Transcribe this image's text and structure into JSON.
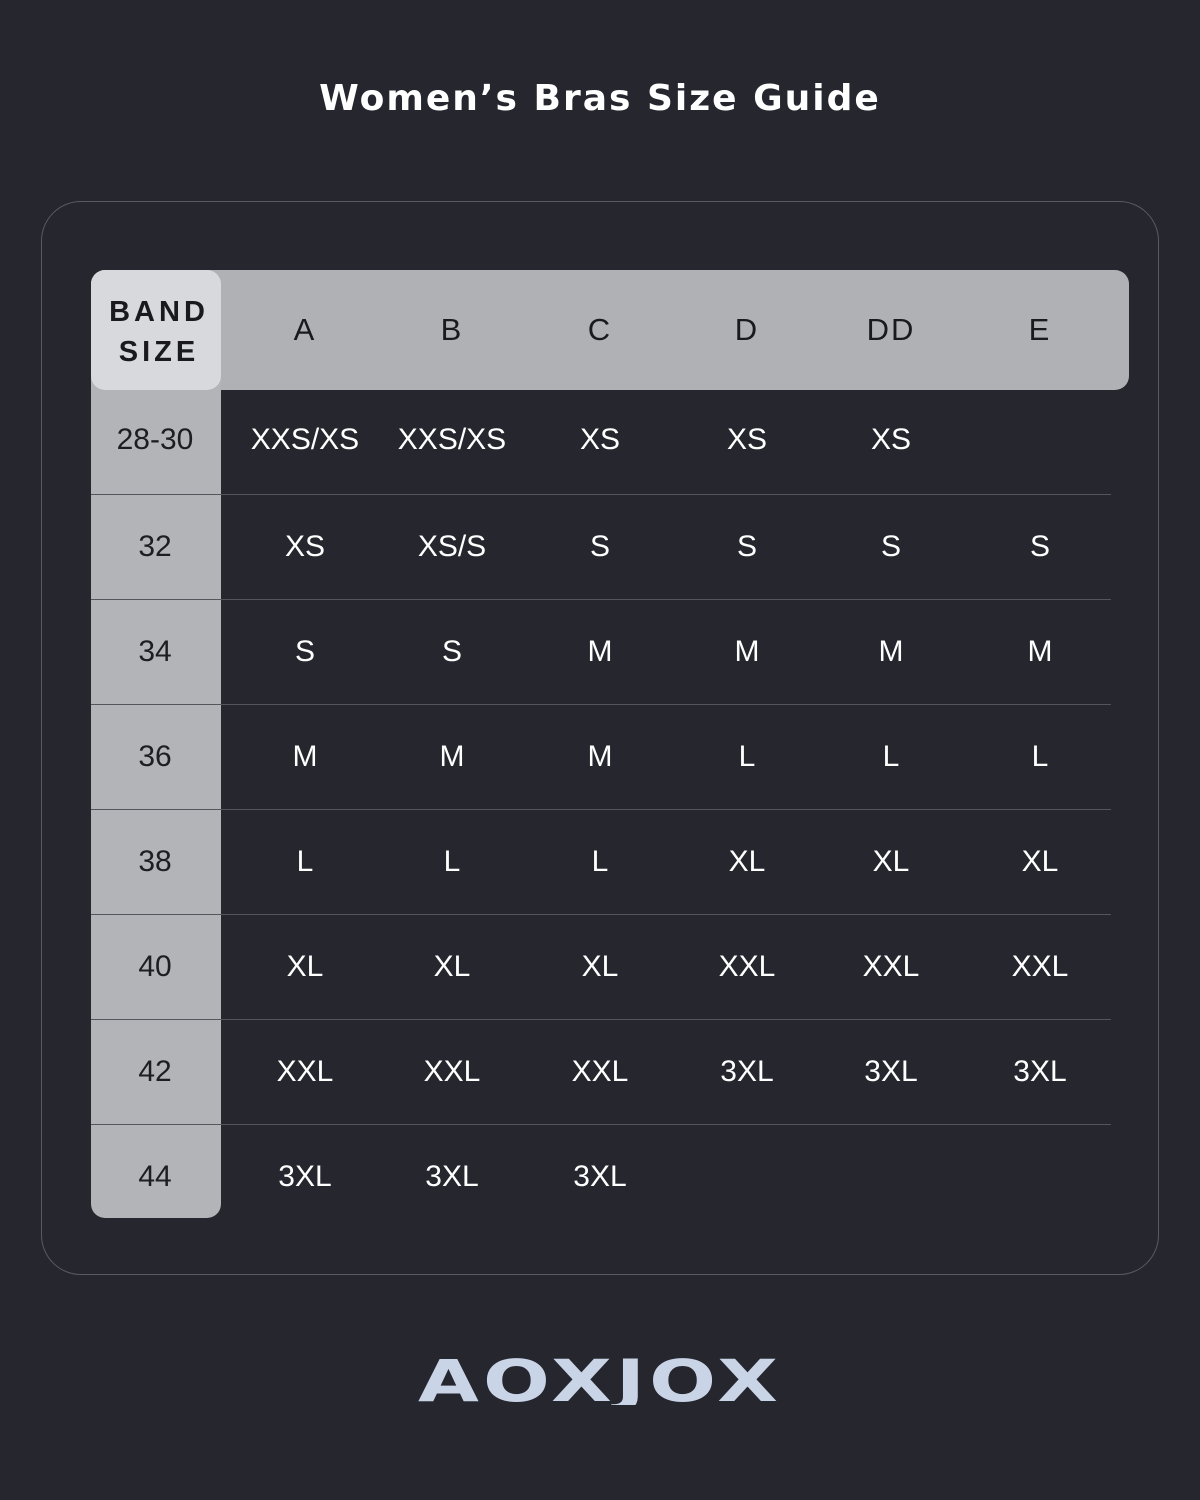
{
  "title": "Women’s Bras Size Guide",
  "table": {
    "band_header_line1": "BAND",
    "band_header_line2": "SIZE",
    "cup_headers": [
      "A",
      "B",
      "C",
      "D",
      "DD",
      "E"
    ],
    "rows": [
      {
        "band": "28-30",
        "sizes": [
          "XXS/XS",
          "XXS/XS",
          "XS",
          "XS",
          "XS",
          ""
        ]
      },
      {
        "band": "32",
        "sizes": [
          "XS",
          "XS/S",
          "S",
          "S",
          "S",
          "S"
        ]
      },
      {
        "band": "34",
        "sizes": [
          "S",
          "S",
          "M",
          "M",
          "M",
          "M"
        ]
      },
      {
        "band": "36",
        "sizes": [
          "M",
          "M",
          "M",
          "L",
          "L",
          "L"
        ]
      },
      {
        "band": "38",
        "sizes": [
          "L",
          "L",
          "L",
          "XL",
          "XL",
          "XL"
        ]
      },
      {
        "band": "40",
        "sizes": [
          "XL",
          "XL",
          "XL",
          "XXL",
          "XXL",
          "XXL"
        ]
      },
      {
        "band": "42",
        "sizes": [
          "XXL",
          "XXL",
          "XXL",
          "3XL",
          "3XL",
          "3XL"
        ]
      },
      {
        "band": "44",
        "sizes": [
          "3XL",
          "3XL",
          "3XL",
          "",
          "",
          ""
        ]
      }
    ]
  },
  "brand": {
    "logo_text": "AOXJOX",
    "color": "#c9d4e6"
  },
  "colors": {
    "background": "#25262e",
    "header": "#b0b1b5",
    "band_header": "#d8d9dd"
  }
}
